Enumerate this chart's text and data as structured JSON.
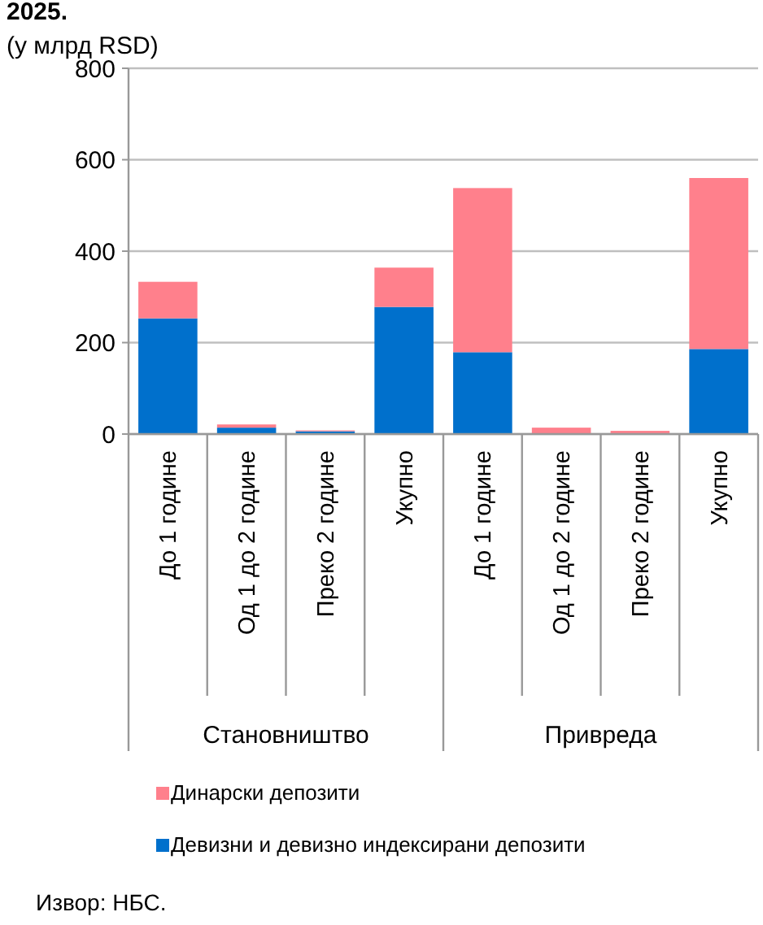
{
  "chart_data": {
    "type": "bar",
    "title": "2025.",
    "ylabel": "(у млрд RSD)",
    "stacked": true,
    "legend": "bottom",
    "grid": "y",
    "categories": [
      "До 1 године",
      "Од 1 до 2 године",
      "Преко 2 године",
      "Укупно",
      "До 1 године",
      "Од 1 до 2 године",
      "Преко 2 године",
      "Укупно"
    ],
    "series": [
      {
        "name": "Девизни и девизно индексирани депозити",
        "color": "#0070cc",
        "values": [
          253,
          14,
          6,
          278,
          179,
          null,
          1,
          186
        ]
      },
      {
        "name": "Динарски депозити",
        "color": "#ff808c",
        "values": [
          80,
          7,
          2,
          86,
          359,
          14,
          6,
          374
        ]
      }
    ],
    "ylim": [
      0,
      800
    ],
    "yticks": [
      0,
      200,
      400,
      600,
      800
    ],
    "annotations": [
      "Становништво",
      "Привреда",
      "Извор: НБС."
    ]
  }
}
